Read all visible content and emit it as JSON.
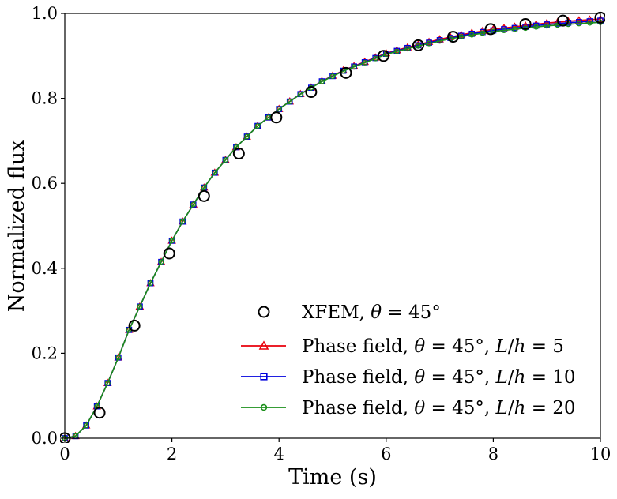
{
  "chart_data": {
    "type": "line",
    "title": "",
    "xlabel": "Time (s)",
    "ylabel": "Normalized flux",
    "xlim": [
      0,
      10
    ],
    "ylim": [
      0,
      1
    ],
    "xticks": [
      0,
      2,
      4,
      6,
      8,
      10
    ],
    "yticks": [
      0.0,
      0.2,
      0.4,
      0.6,
      0.8,
      1.0
    ],
    "xtick_labels": [
      "0",
      "2",
      "4",
      "6",
      "8",
      "10"
    ],
    "ytick_labels": [
      "0.0",
      "0.2",
      "0.4",
      "0.6",
      "0.8",
      "1.0"
    ],
    "grid": false,
    "legend_position": "lower-right",
    "legend": [
      {
        "label": "XFEM, θ = 45°",
        "color": "#000000",
        "marker": "circle",
        "line": false
      },
      {
        "label": "Phase field, θ = 45°, L/h = 5",
        "color": "#e8000b",
        "marker": "triangle",
        "line": true
      },
      {
        "label": "Phase field, θ = 45°, L/h = 10",
        "color": "#0000dd",
        "marker": "square",
        "line": true
      },
      {
        "label": "Phase field, θ = 45°, L/h = 20",
        "color": "#1a8f1a",
        "marker": "circle-small",
        "line": true
      }
    ],
    "series": [
      {
        "name": "XFEM, θ = 45°",
        "x": [
          0.0,
          0.65,
          1.3,
          1.95,
          2.6,
          3.25,
          3.95,
          4.6,
          5.25,
          5.95,
          6.6,
          7.25,
          7.95,
          8.6,
          9.3,
          10.0
        ],
        "y": [
          0.0,
          0.06,
          0.265,
          0.435,
          0.57,
          0.67,
          0.755,
          0.815,
          0.86,
          0.9,
          0.925,
          0.945,
          0.963,
          0.975,
          0.983,
          0.99
        ]
      },
      {
        "name": "Phase field, θ = 45°, L/h = 5",
        "model": "sigmoid",
        "t0": 0.08,
        "sigma": 0.82,
        "tau": 2.8,
        "tmax": 10,
        "npoints": 51
      },
      {
        "name": "Phase field, θ = 45°, L/h = 10",
        "model": "sigmoid",
        "t0": 0.08,
        "sigma": 0.82,
        "tau": 2.8,
        "tmax": 10,
        "npoints": 51
      },
      {
        "name": "Phase field, θ = 45°, L/h = 20",
        "model": "sigmoid",
        "t0": 0.08,
        "sigma": 0.82,
        "tau": 2.8,
        "tmax": 10,
        "npoints": 51
      }
    ]
  }
}
